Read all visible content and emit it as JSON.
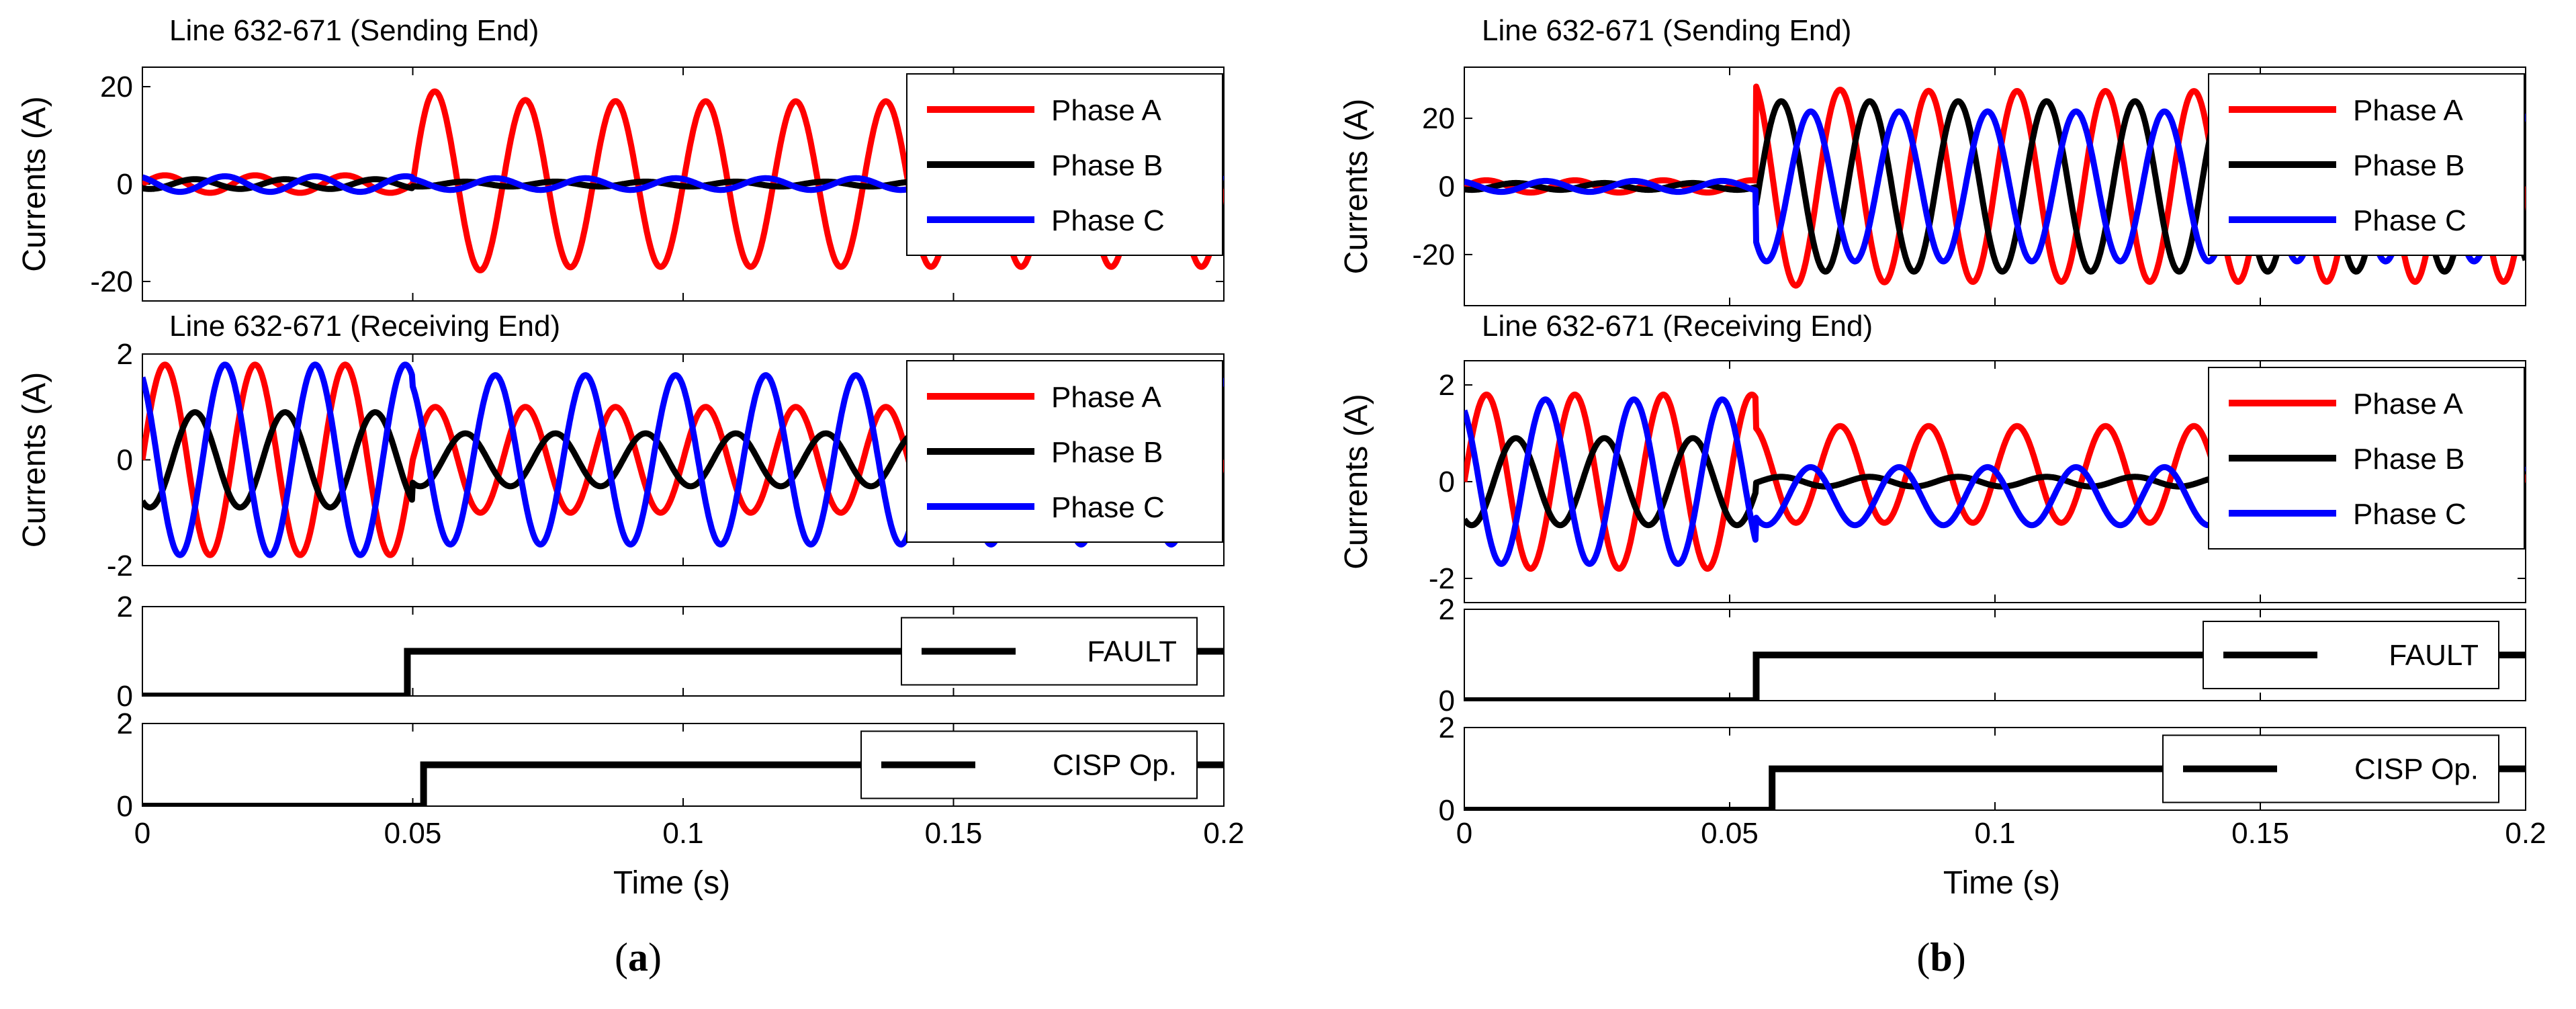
{
  "colors": {
    "phase_a": "#ff0000",
    "phase_b": "#000000",
    "phase_c": "#0000ff",
    "step": "#000000"
  },
  "xlabel": "Time (s)",
  "x_ticks": [
    "0",
    "0.05",
    "0.1",
    "0.15",
    "0.2"
  ],
  "chart_data": [
    {
      "type": "line",
      "caption": {
        "open": "(",
        "letter": "a",
        "close": ")"
      },
      "xlim": [
        0,
        0.2
      ],
      "panels": [
        {
          "title": "Line 632-671 (Sending End)",
          "ylabel": "Currents (A)",
          "ylim": [
            -24,
            24
          ],
          "y_ticks": [
            "20",
            "0",
            "-20"
          ],
          "y_tick_values": [
            20,
            0,
            -20
          ],
          "series": [
            {
              "name": "Phase A",
              "color": "#ff0000",
              "pre_amp": 1.8,
              "post_amp": 17,
              "phase_deg": 0,
              "overshoot": 1.2
            },
            {
              "name": "Phase B",
              "color": "#000000",
              "pre_amp": 1.0,
              "post_amp": 0.5,
              "phase_deg": -120
            },
            {
              "name": "Phase C",
              "color": "#0000ff",
              "pre_amp": 1.6,
              "post_amp": 1.2,
              "phase_deg": 120
            }
          ],
          "fault_time": 0.05,
          "legend": [
            "Phase A",
            "Phase B",
            "Phase C"
          ]
        },
        {
          "title": "Line 632-671 (Receiving End)",
          "ylabel": "Currents (A)",
          "ylim": [
            -2,
            2
          ],
          "y_ticks": [
            "2",
            "0",
            "-2"
          ],
          "y_tick_values": [
            2,
            0,
            -2
          ],
          "series": [
            {
              "name": "Phase A",
              "color": "#ff0000",
              "pre_amp": 1.8,
              "post_amp": 1.0,
              "phase_deg": 0
            },
            {
              "name": "Phase B",
              "color": "#000000",
              "pre_amp": 0.9,
              "post_amp": 0.5,
              "phase_deg": -120
            },
            {
              "name": "Phase C",
              "color": "#0000ff",
              "pre_amp": 1.8,
              "post_amp": 1.6,
              "phase_deg": 120
            }
          ],
          "fault_time": 0.05,
          "legend": [
            "Phase A",
            "Phase B",
            "Phase C"
          ]
        },
        {
          "type": "step",
          "label": "FAULT",
          "ylim": [
            0,
            2
          ],
          "y_ticks": [
            "2",
            "0"
          ],
          "y_tick_values": [
            2,
            0
          ],
          "step_time": 0.049,
          "low": 0,
          "high": 1
        },
        {
          "type": "step",
          "label": "CISP Op.",
          "ylim": [
            0,
            2
          ],
          "y_ticks": [
            "2",
            "0"
          ],
          "y_tick_values": [
            2,
            0
          ],
          "step_time": 0.052,
          "low": 0,
          "high": 1
        }
      ]
    },
    {
      "type": "line",
      "caption": {
        "open": "(",
        "letter": "b",
        "close": ")"
      },
      "xlim": [
        0,
        0.2
      ],
      "panels": [
        {
          "title": "Line 632-671 (Sending End)",
          "ylabel": "Currents (A)",
          "ylim": [
            -35,
            35
          ],
          "y_ticks": [
            "20",
            "0",
            "-20"
          ],
          "y_tick_values": [
            20,
            0,
            -20
          ],
          "series": [
            {
              "name": "Phase A",
              "color": "#ff0000",
              "pre_amp": 1.8,
              "post_amp": 28,
              "phase_deg": 0,
              "overshoot": 1.1
            },
            {
              "name": "Phase B",
              "color": "#000000",
              "pre_amp": 1.0,
              "post_amp": 25,
              "phase_deg": -120
            },
            {
              "name": "Phase C",
              "color": "#0000ff",
              "pre_amp": 1.6,
              "post_amp": 22,
              "phase_deg": 120
            }
          ],
          "fault_time": 0.055,
          "legend": [
            "Phase A",
            "Phase B",
            "Phase C"
          ]
        },
        {
          "title": "Line 632-671 (Receiving End)",
          "ylabel": "Currents (A)",
          "ylim": [
            -2.5,
            2.5
          ],
          "y_ticks": [
            "2",
            "0",
            "-2"
          ],
          "y_tick_values": [
            2,
            0,
            -2
          ],
          "series": [
            {
              "name": "Phase A",
              "color": "#ff0000",
              "pre_amp": 1.8,
              "post_amp": 1.0,
              "phase_deg": 0,
              "post_offset": 0.15
            },
            {
              "name": "Phase B",
              "color": "#000000",
              "pre_amp": 0.9,
              "post_amp": 0.1,
              "phase_deg": -120
            },
            {
              "name": "Phase C",
              "color": "#0000ff",
              "pre_amp": 1.7,
              "post_amp": 0.6,
              "phase_deg": 120,
              "post_offset": -0.3
            }
          ],
          "fault_time": 0.055,
          "legend": [
            "Phase A",
            "Phase B",
            "Phase C"
          ]
        },
        {
          "type": "step",
          "label": "FAULT",
          "ylim": [
            0,
            2
          ],
          "y_ticks": [
            "2",
            "0"
          ],
          "y_tick_values": [
            2,
            0
          ],
          "step_time": 0.055,
          "low": 0,
          "high": 1
        },
        {
          "type": "step",
          "label": "CISP Op.",
          "ylim": [
            0,
            2
          ],
          "y_ticks": [
            "2",
            "0"
          ],
          "y_tick_values": [
            2,
            0
          ],
          "step_time": 0.058,
          "low": 0,
          "high": 1
        }
      ]
    }
  ]
}
